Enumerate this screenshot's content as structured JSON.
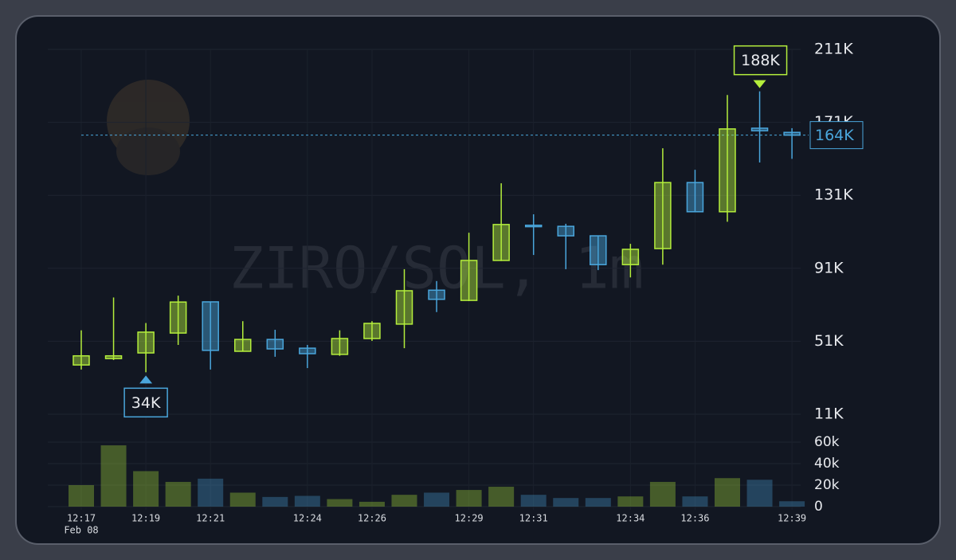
{
  "chart_data": {
    "type": "candlestick",
    "title": "ZIRO/SOL, 1m",
    "categories": [
      "12:17",
      null,
      "12:19",
      null,
      "12:21",
      null,
      null,
      "12:24",
      null,
      "12:26",
      null,
      null,
      "12:29",
      null,
      "12:31",
      null,
      null,
      "12:34",
      null,
      "12:36",
      null,
      null,
      "12:39"
    ],
    "date_label": "Feb 08",
    "open": [
      38000,
      41500,
      44600,
      55500,
      72600,
      45500,
      52000,
      47200,
      43800,
      52500,
      60400,
      79000,
      73400,
      95300,
      114600,
      114000,
      108800,
      93000,
      101800,
      138000,
      122000,
      167800,
      165500
    ],
    "high": [
      57000,
      75000,
      61000,
      76000,
      72600,
      62000,
      57300,
      49000,
      57000,
      62000,
      90500,
      84000,
      110500,
      137600,
      120600,
      115400,
      108800,
      104400,
      156800,
      145000,
      186000,
      188000,
      167800
    ],
    "low": [
      35500,
      40700,
      34000,
      49000,
      35500,
      45500,
      42500,
      36300,
      43000,
      51200,
      47200,
      67000,
      73000,
      95000,
      98300,
      90500,
      90000,
      86000,
      93000,
      122000,
      116500,
      149000,
      151000
    ],
    "close": [
      43000,
      43000,
      56000,
      72500,
      46000,
      52000,
      46800,
      44200,
      52500,
      60800,
      78700,
      74000,
      95300,
      115000,
      113800,
      108800,
      93000,
      101400,
      138000,
      122000,
      167400,
      166400,
      164000
    ],
    "up_color": "#b4ee3c",
    "down_color": "#4aa6dc",
    "ylim": [
      11000,
      211000
    ],
    "yticks": [
      {
        "value": 11000,
        "label": "11K"
      },
      {
        "value": 51000,
        "label": "51K"
      },
      {
        "value": 91000,
        "label": "91K"
      },
      {
        "value": 131000,
        "label": "131K"
      },
      {
        "value": 171000,
        "label": "171K"
      },
      {
        "value": 211000,
        "label": "211K"
      }
    ],
    "high_label": "188K",
    "low_label": "34K",
    "last_price_label": "164K",
    "grid": true,
    "volume": {
      "values": [
        20000,
        57000,
        33000,
        23000,
        26000,
        13000,
        9000,
        10000,
        7000,
        4500,
        11000,
        13000,
        15500,
        18500,
        11000,
        8000,
        8000,
        9500,
        23000,
        9500,
        26500,
        25000,
        5000
      ],
      "ylim": [
        0,
        60000
      ],
      "yticks": [
        0,
        {
          "value": 20000,
          "label": "20k"
        },
        {
          "value": 40000,
          "label": "40k"
        },
        {
          "value": 60000,
          "label": "60k"
        }
      ]
    }
  }
}
